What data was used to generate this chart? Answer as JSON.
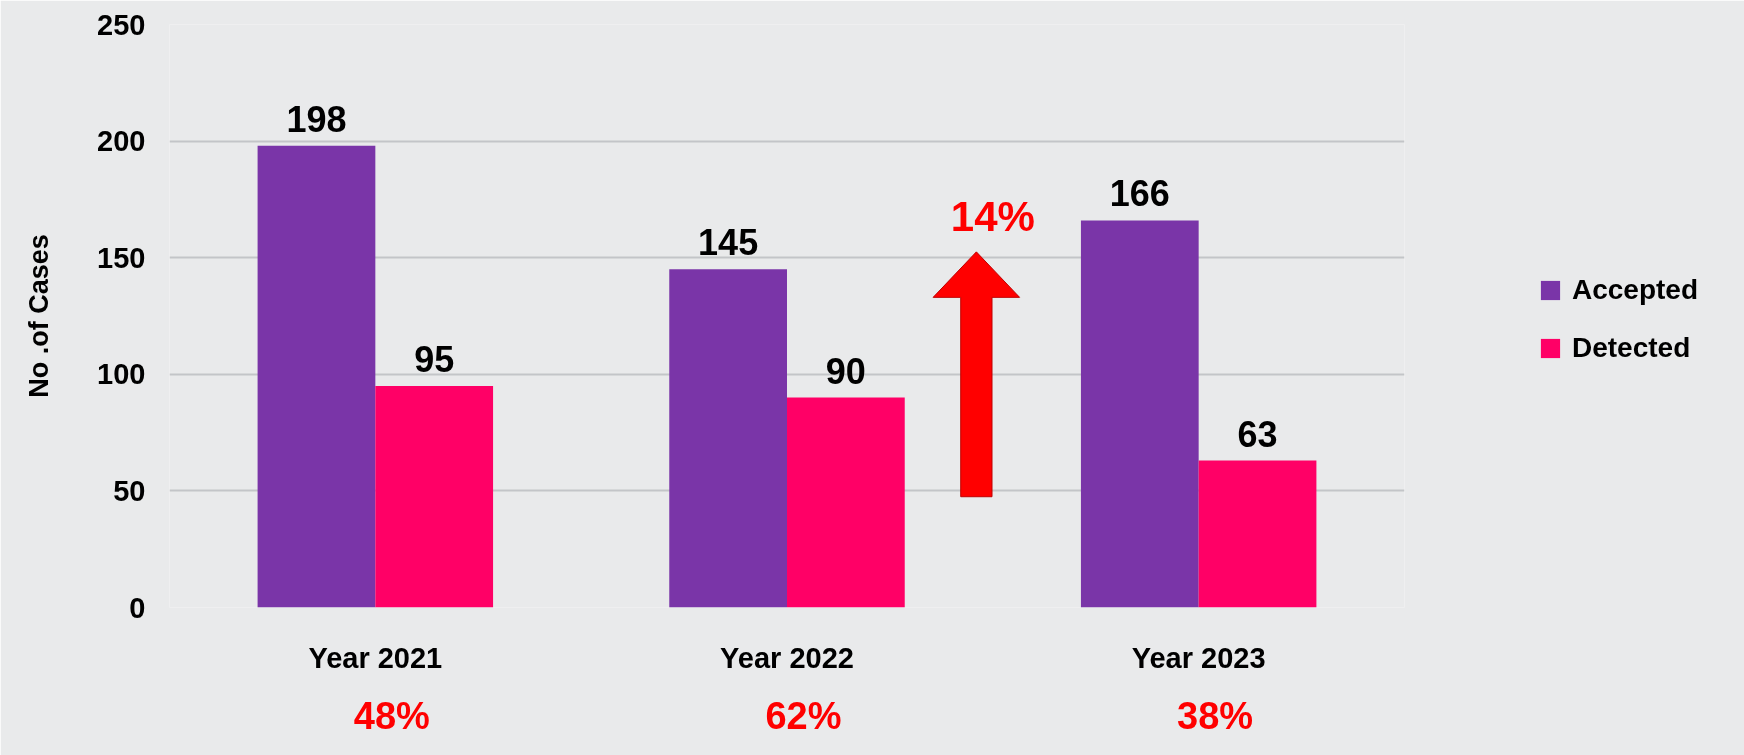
{
  "chart_data": {
    "type": "bar",
    "ylabel": "No .of Cases",
    "categories": [
      "Year 2021",
      "Year 2022",
      "Year 2023"
    ],
    "series": [
      {
        "name": "Accepted",
        "color": "#7a35a8",
        "values": [
          198,
          145,
          166
        ]
      },
      {
        "name": "Detected",
        "color": "#ff0066",
        "values": [
          95,
          90,
          63
        ]
      }
    ],
    "ylim": [
      0,
      250
    ],
    "yticks": [
      0,
      50,
      100,
      150,
      200,
      250
    ],
    "grid": "y",
    "legend": "right",
    "data_labels": true,
    "annotations": [
      "48%",
      "62%",
      "38%",
      "14%"
    ]
  }
}
